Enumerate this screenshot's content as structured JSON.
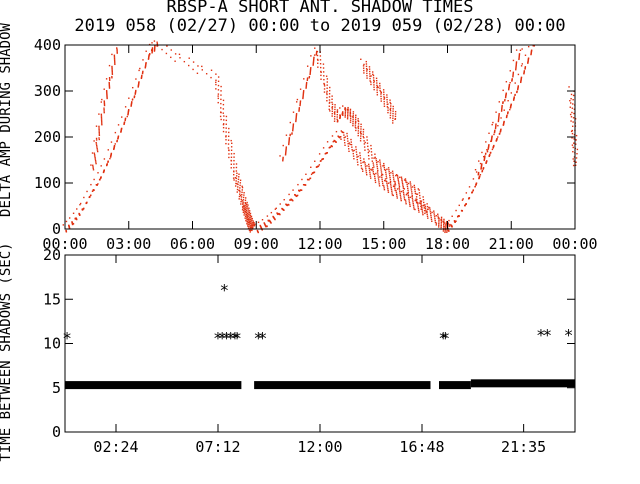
{
  "figure": {
    "title": "RBSP-A SHORT ANT. SHADOW TIMES",
    "subtitle": "2019 058 (02/27) 00:00 to 2019 059 (02/28) 00:00",
    "colors": {
      "foreground": "#000000",
      "background": "#ffffff",
      "scatter": "#e03010"
    }
  },
  "chart_data": [
    {
      "type": "scatter",
      "ylabel": "DELTA AMP DURING SHADOW",
      "ylim": [
        0,
        400
      ],
      "yticks": [
        0,
        100,
        200,
        300,
        400
      ],
      "xlim": [
        0,
        24
      ],
      "xticks": [
        0,
        3,
        6,
        9,
        12,
        15,
        18,
        21,
        24
      ],
      "xtick_labels": [
        "00:00",
        "03:00",
        "06:00",
        "09:00",
        "12:00",
        "15:00",
        "18:00",
        "21:00",
        "00:00"
      ],
      "series": [
        {
          "x": [
            0.0,
            0.4,
            0.8,
            1.2,
            1.6,
            2.0,
            2.4,
            2.8,
            3.2,
            3.6,
            4.0,
            4.3,
            7.1,
            7.4,
            7.7,
            8.0,
            8.2,
            8.4,
            8.5,
            8.6,
            8.7,
            8.8
          ],
          "y": [
            0,
            20,
            45,
            80,
            110,
            150,
            195,
            240,
            290,
            340,
            390,
            400,
            330,
            250,
            180,
            120,
            85,
            55,
            40,
            25,
            12,
            3
          ]
        },
        {
          "x": [
            1.3,
            1.5,
            1.8,
            2.1,
            2.4
          ],
          "y": [
            130,
            200,
            270,
            330,
            395
          ]
        },
        {
          "x": [
            9.0,
            9.5,
            10.0,
            10.5,
            11.0,
            11.5,
            12.0,
            12.5,
            13.0,
            13.5,
            14.0,
            14.5,
            15.0,
            15.5,
            16.0,
            16.5,
            17.0,
            17.5,
            17.8,
            18.0
          ],
          "y": [
            0,
            15,
            35,
            60,
            85,
            115,
            150,
            185,
            210,
            175,
            140,
            120,
            100,
            85,
            70,
            55,
            40,
            22,
            10,
            2
          ]
        },
        {
          "x": [
            10.2,
            10.6,
            11.0,
            11.4,
            11.8,
            12.2,
            12.5,
            12.8,
            13.1,
            13.4,
            13.7,
            14.0,
            14.5,
            15.0,
            15.5,
            16.0,
            16.5,
            17.0
          ],
          "y": [
            150,
            210,
            270,
            330,
            390,
            320,
            270,
            240,
            260,
            250,
            230,
            200,
            150,
            130,
            110,
            100,
            80,
            40
          ]
        },
        {
          "x": [
            14.0,
            14.4,
            14.8,
            15.2,
            15.5
          ],
          "y": [
            360,
            330,
            300,
            270,
            240
          ]
        },
        {
          "x": [
            18.0,
            18.4,
            18.8,
            19.2,
            19.6,
            20.0,
            20.4,
            20.8,
            21.2,
            21.6,
            22.0
          ],
          "y": [
            0,
            25,
            55,
            90,
            130,
            170,
            210,
            255,
            300,
            350,
            400
          ]
        },
        {
          "x": [
            19.4,
            19.8,
            20.2,
            20.6,
            21.0,
            21.4
          ],
          "y": [
            120,
            170,
            220,
            280,
            330,
            390
          ]
        },
        {
          "x": [
            23.8,
            23.9,
            24.0
          ],
          "y": [
            300,
            220,
            140
          ]
        }
      ]
    },
    {
      "type": "scatter",
      "ylabel": "TIME BETWEEN SHADOWS (SEC)",
      "ylim": [
        0,
        20
      ],
      "yticks": [
        0,
        5,
        10,
        15,
        20
      ],
      "xlim": [
        0,
        24
      ],
      "xticks": [
        2.4,
        7.2,
        12.0,
        16.8,
        21.583
      ],
      "xtick_labels": [
        "02:24",
        "07:12",
        "12:00",
        "16:48",
        "21:35"
      ],
      "bands": [
        {
          "x": [
            0,
            8.3
          ],
          "y": 5.3
        },
        {
          "x": [
            8.9,
            17.2
          ],
          "y": 5.3
        },
        {
          "x": [
            17.6,
            19.1
          ],
          "y": 5.3
        },
        {
          "x": [
            19.1,
            24.0
          ],
          "y": 5.5
        }
      ],
      "outliers": {
        "x": [
          0.1,
          7.2,
          7.4,
          7.6,
          7.8,
          8.0,
          8.1,
          9.1,
          9.3,
          17.8,
          17.9,
          22.4,
          22.7,
          23.7,
          7.5
        ],
        "y": [
          10.7,
          10.7,
          10.7,
          10.7,
          10.7,
          10.7,
          10.7,
          10.7,
          10.7,
          10.7,
          10.7,
          11.0,
          11.0,
          11.0,
          16.1
        ]
      },
      "marker": "*"
    }
  ]
}
